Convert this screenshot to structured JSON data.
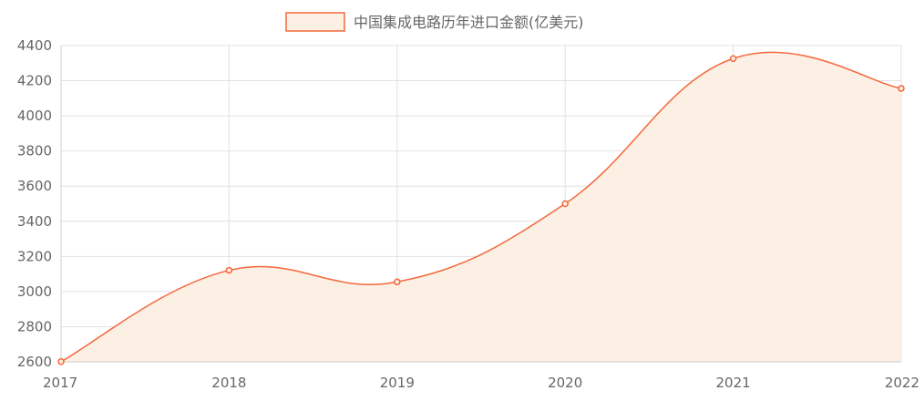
{
  "chart_data": {
    "type": "area",
    "x": [
      "2017",
      "2018",
      "2019",
      "2020",
      "2021",
      "2022"
    ],
    "series": [
      {
        "name": "中国集成电路历年进口金额(亿美元)",
        "values": [
          2601,
          3121,
          3055,
          3500,
          4326,
          4156
        ]
      }
    ],
    "ylim": [
      2600,
      4400
    ],
    "yticks": [
      2600,
      2800,
      3000,
      3200,
      3400,
      3600,
      3800,
      4000,
      4200,
      4400
    ],
    "grid": true,
    "legend": "top-center",
    "colors": {
      "line": "#f4683e",
      "fill": "#fcefe3",
      "grid": "#e2e2e2",
      "tick_text": "#666666"
    }
  }
}
